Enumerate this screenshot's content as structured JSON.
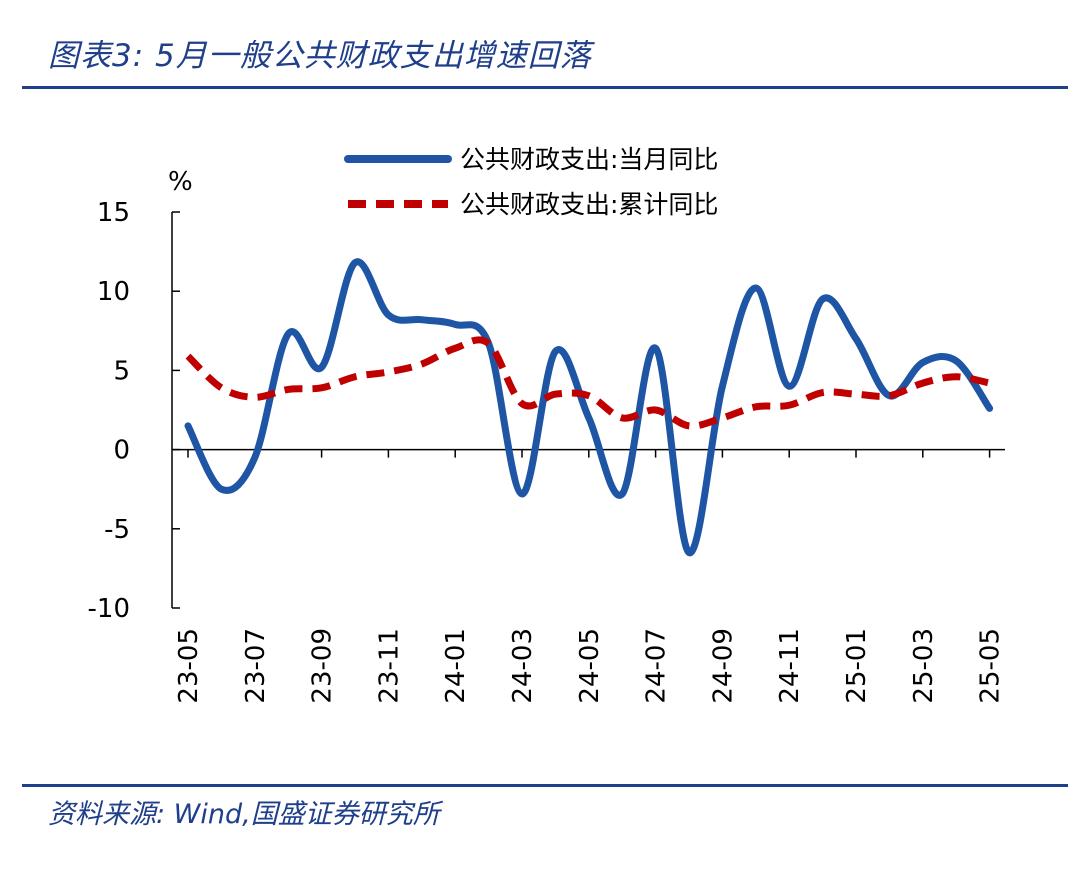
{
  "header": {
    "title": "图表3:  5月一般公共财政支出增速回落"
  },
  "footer": {
    "source": "资料来源:  Wind,国盛证券研究所"
  },
  "colors": {
    "accent": "#1f3f8a",
    "series_monthly": "#1f55a5",
    "series_cumulative": "#c00000"
  },
  "chart_data": {
    "type": "line",
    "title": "",
    "xlabel": "",
    "ylabel": "%",
    "ylim": [
      -10,
      15
    ],
    "yticks": [
      15,
      10,
      5,
      0,
      -5,
      -10
    ],
    "grid": false,
    "legend_position": "top",
    "x": [
      "23-05",
      "23-06",
      "23-07",
      "23-08",
      "23-09",
      "23-10",
      "23-11",
      "23-12",
      "24-01",
      "24-02",
      "24-03",
      "24-04",
      "24-05",
      "24-06",
      "24-07",
      "24-08",
      "24-09",
      "24-10",
      "24-11",
      "24-12",
      "25-01",
      "25-02",
      "25-03",
      "25-04",
      "25-05"
    ],
    "x_tick_labels": [
      "23-05",
      "23-07",
      "23-09",
      "23-11",
      "24-01",
      "24-03",
      "24-05",
      "24-07",
      "24-09",
      "24-11",
      "25-01",
      "25-03",
      "25-05"
    ],
    "series": [
      {
        "name": "公共财政支出:当月同比",
        "style": "solid",
        "values": [
          1.5,
          -2.5,
          -0.5,
          7.3,
          5.2,
          11.8,
          8.5,
          8.2,
          7.9,
          6.7,
          -2.8,
          6.2,
          2.0,
          -2.8,
          6.4,
          -6.5,
          4.0,
          10.2,
          4.0,
          9.5,
          7.0,
          3.4,
          5.5,
          5.6,
          2.6
        ]
      },
      {
        "name": "公共财政支出:累计同比",
        "style": "dashed",
        "values": [
          5.9,
          3.9,
          3.3,
          3.8,
          3.9,
          4.6,
          4.9,
          5.4,
          6.4,
          6.7,
          2.9,
          3.5,
          3.4,
          2.0,
          2.5,
          1.5,
          2.0,
          2.7,
          2.8,
          3.6,
          3.5,
          3.4,
          4.2,
          4.6,
          4.2
        ]
      }
    ]
  }
}
